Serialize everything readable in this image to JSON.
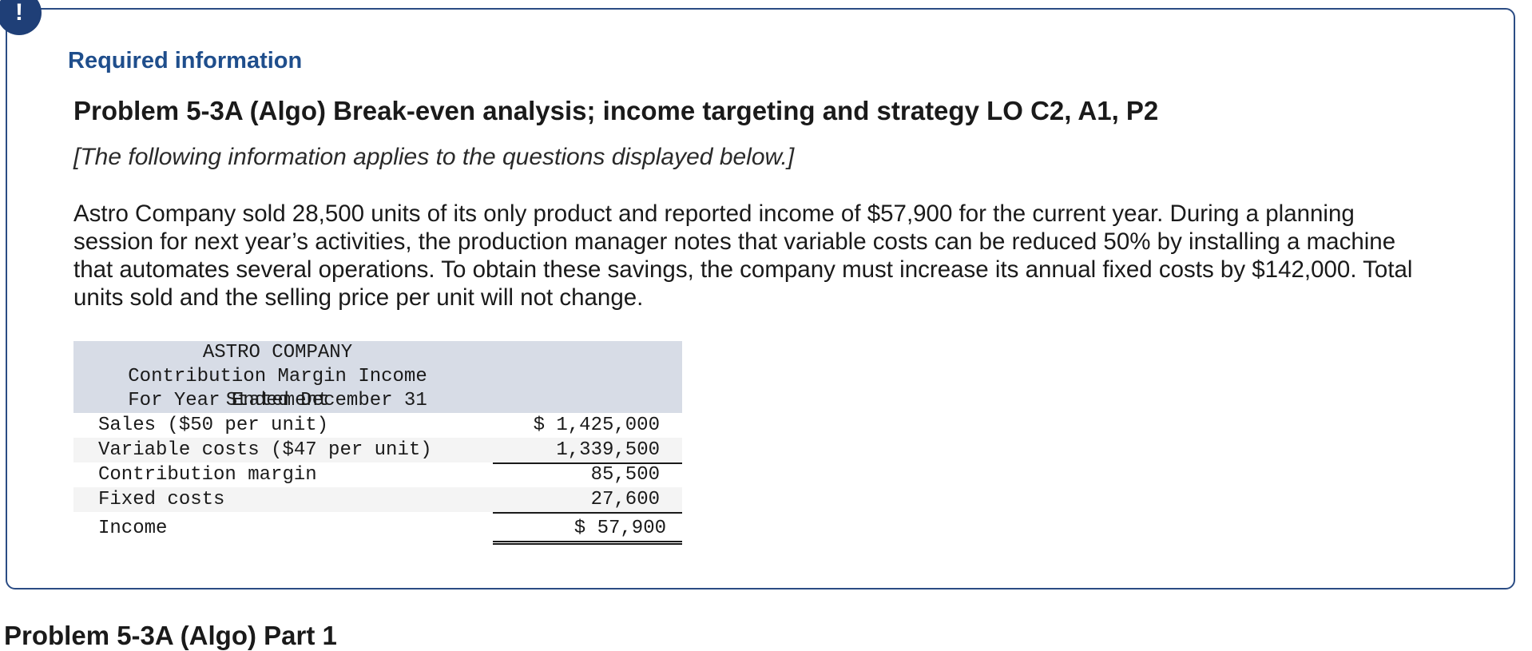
{
  "alert": {
    "icon": "exclamation-icon",
    "symbol": "!"
  },
  "card": {
    "required_heading": "Required information",
    "problem_title": "Problem 5-3A (Algo) Break-even analysis; income targeting and strategy LO C2, A1, P2",
    "intro_note": "[The following information applies to the questions displayed below.]",
    "paragraph": "Astro Company sold 28,500 units of its only product and reported income of $57,900 for the current year. During a planning session for next year’s activities, the production manager notes that variable costs can be reduced 50% by installing a machine that automates several operations. To obtain these savings, the company must increase its annual fixed costs by $142,000. Total units sold and the selling price per unit will not change."
  },
  "statement": {
    "company": "ASTRO COMPANY",
    "title": "Contribution Margin Income Statement",
    "period": "For Year Ended December 31",
    "rows": [
      {
        "label": "Sales ($50 per unit)",
        "amount": "$ 1,425,000"
      },
      {
        "label": "Variable costs ($47 per unit)",
        "amount": "1,339,500"
      },
      {
        "label": "Contribution margin",
        "amount": "85,500"
      },
      {
        "label": "Fixed costs",
        "amount": "27,600"
      },
      {
        "label": "Income",
        "amount": "$ 57,900"
      }
    ]
  },
  "next_part_heading": "Problem 5-3A (Algo) Part 1"
}
